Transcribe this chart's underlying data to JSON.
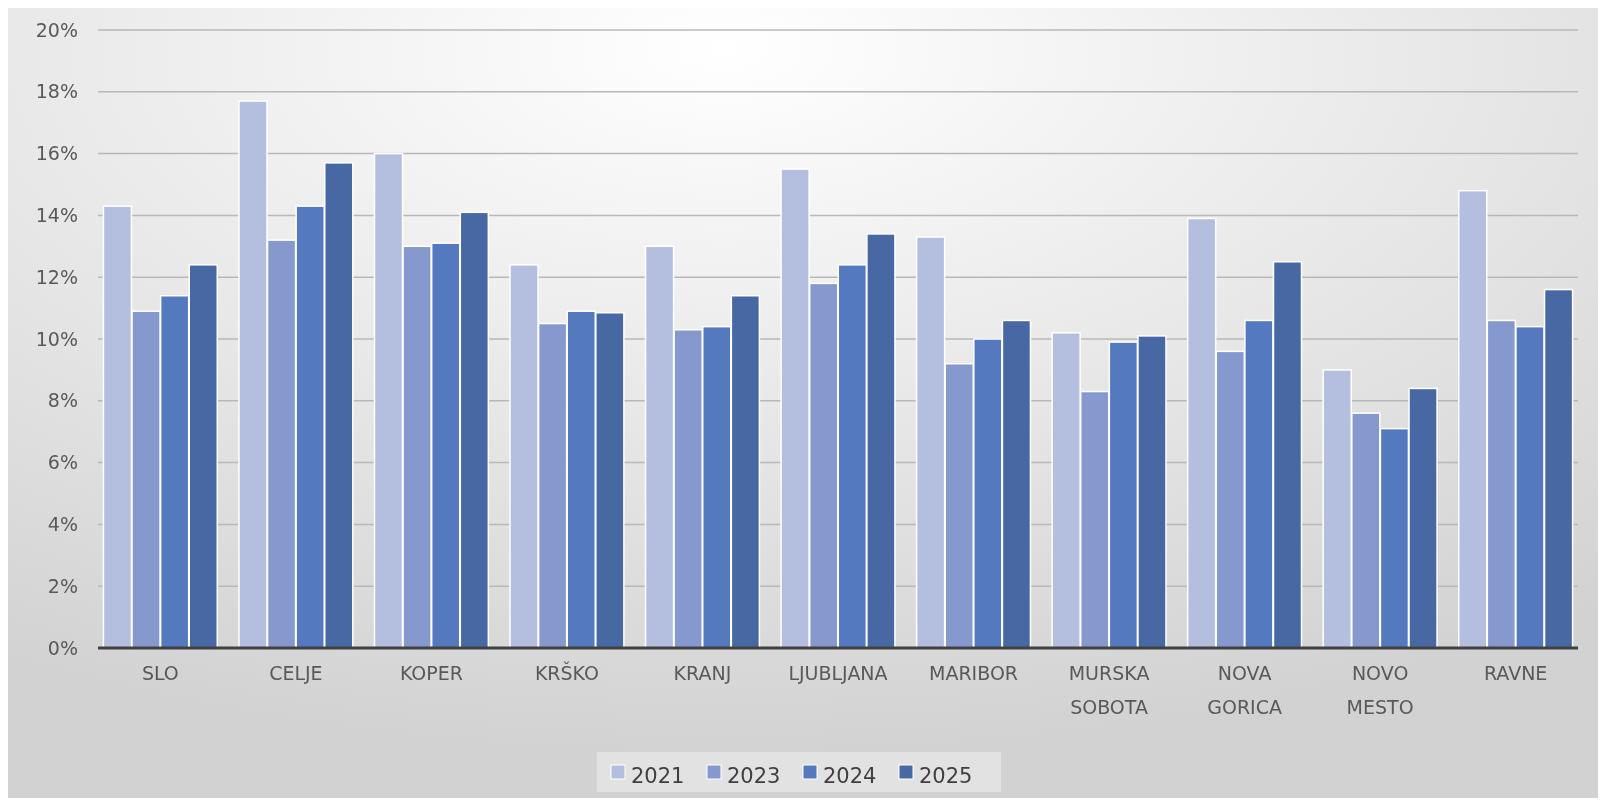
{
  "chart_data": {
    "type": "bar",
    "categories": [
      "SLO",
      "CELJE",
      "KOPER",
      "KRŠKO",
      "KRANJ",
      "LJUBLJANA",
      "MARIBOR",
      "MURSKA SOBOTA",
      "NOVA GORICA",
      "NOVO MESTO",
      "RAVNE"
    ],
    "series": [
      {
        "name": "2021",
        "color": "#b4bfe0",
        "values": [
          14.3,
          17.7,
          16.0,
          12.4,
          13.0,
          15.5,
          13.3,
          10.2,
          13.9,
          9.0,
          14.8
        ]
      },
      {
        "name": "2023",
        "color": "#8599cf",
        "values": [
          10.9,
          13.2,
          13.0,
          10.5,
          10.3,
          11.8,
          9.2,
          8.3,
          9.6,
          7.6,
          10.6
        ]
      },
      {
        "name": "2024",
        "color": "#5579be",
        "values": [
          11.4,
          14.3,
          13.1,
          10.9,
          10.4,
          12.4,
          10.0,
          9.9,
          10.6,
          7.1,
          10.4
        ]
      },
      {
        "name": "2025",
        "color": "#4868a3",
        "values": [
          12.4,
          15.7,
          14.1,
          10.85,
          11.4,
          13.4,
          10.6,
          10.1,
          12.5,
          8.4,
          11.6
        ]
      }
    ],
    "ylim": [
      0,
      20
    ],
    "yticks": [
      {
        "value": 0,
        "label": "0%"
      },
      {
        "value": 2,
        "label": "2%"
      },
      {
        "value": 4,
        "label": "4%"
      },
      {
        "value": 6,
        "label": "6%"
      },
      {
        "value": 8,
        "label": "8%"
      },
      {
        "value": 10,
        "label": "10%"
      },
      {
        "value": 12,
        "label": "12%"
      },
      {
        "value": 14,
        "label": "14%"
      },
      {
        "value": 16,
        "label": "16%"
      },
      {
        "value": 18,
        "label": "18%"
      },
      {
        "value": 20,
        "label": "20%"
      }
    ],
    "grid": "y",
    "legend": "bottom"
  }
}
